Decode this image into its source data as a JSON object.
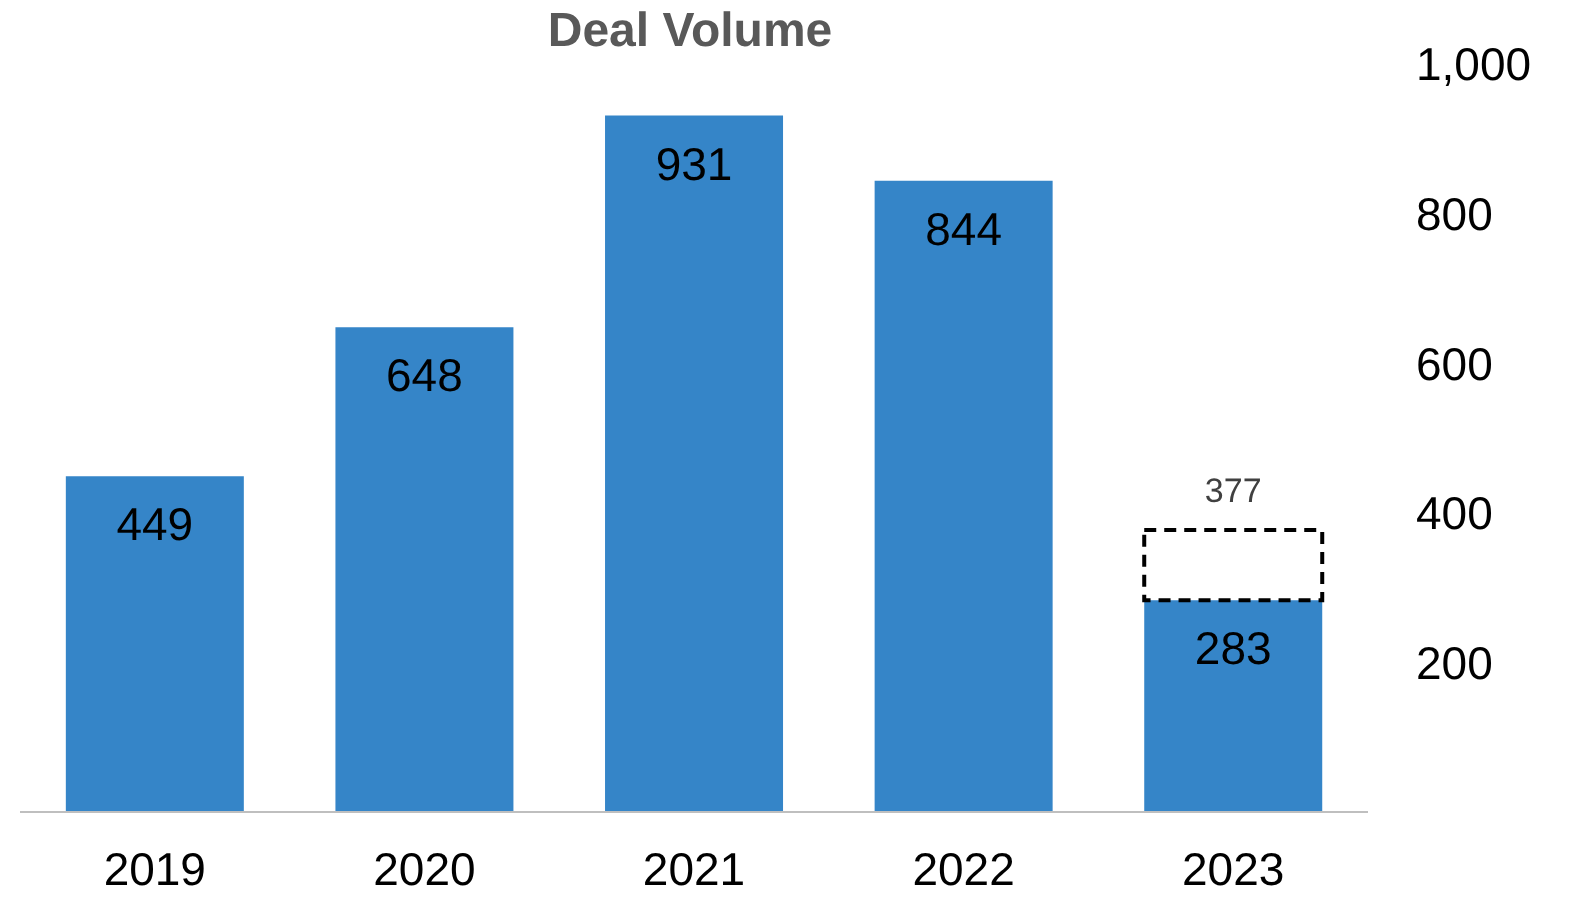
{
  "chart_data": {
    "type": "bar",
    "title": "Deal Volume",
    "categories": [
      "2019",
      "2020",
      "2021",
      "2022",
      "2023"
    ],
    "stacked": true,
    "series": [
      {
        "color": "#3585c8",
        "values": [
          449,
          648,
          931,
          844,
          283
        ],
        "value_labels": [
          "449",
          "648",
          "931",
          "844",
          "283"
        ]
      },
      {
        "color": "#000000",
        "line_style": "dashed",
        "values": [
          null,
          null,
          null,
          null,
          94
        ]
      }
    ],
    "totals": [
      null,
      null,
      null,
      null,
      "377"
    ],
    "ylim": [
      0,
      1000
    ],
    "yticks": [
      200,
      400,
      600,
      800,
      {
        "value": 1000,
        "label": "1,000"
      }
    ],
    "grid": false,
    "legend": false
  }
}
